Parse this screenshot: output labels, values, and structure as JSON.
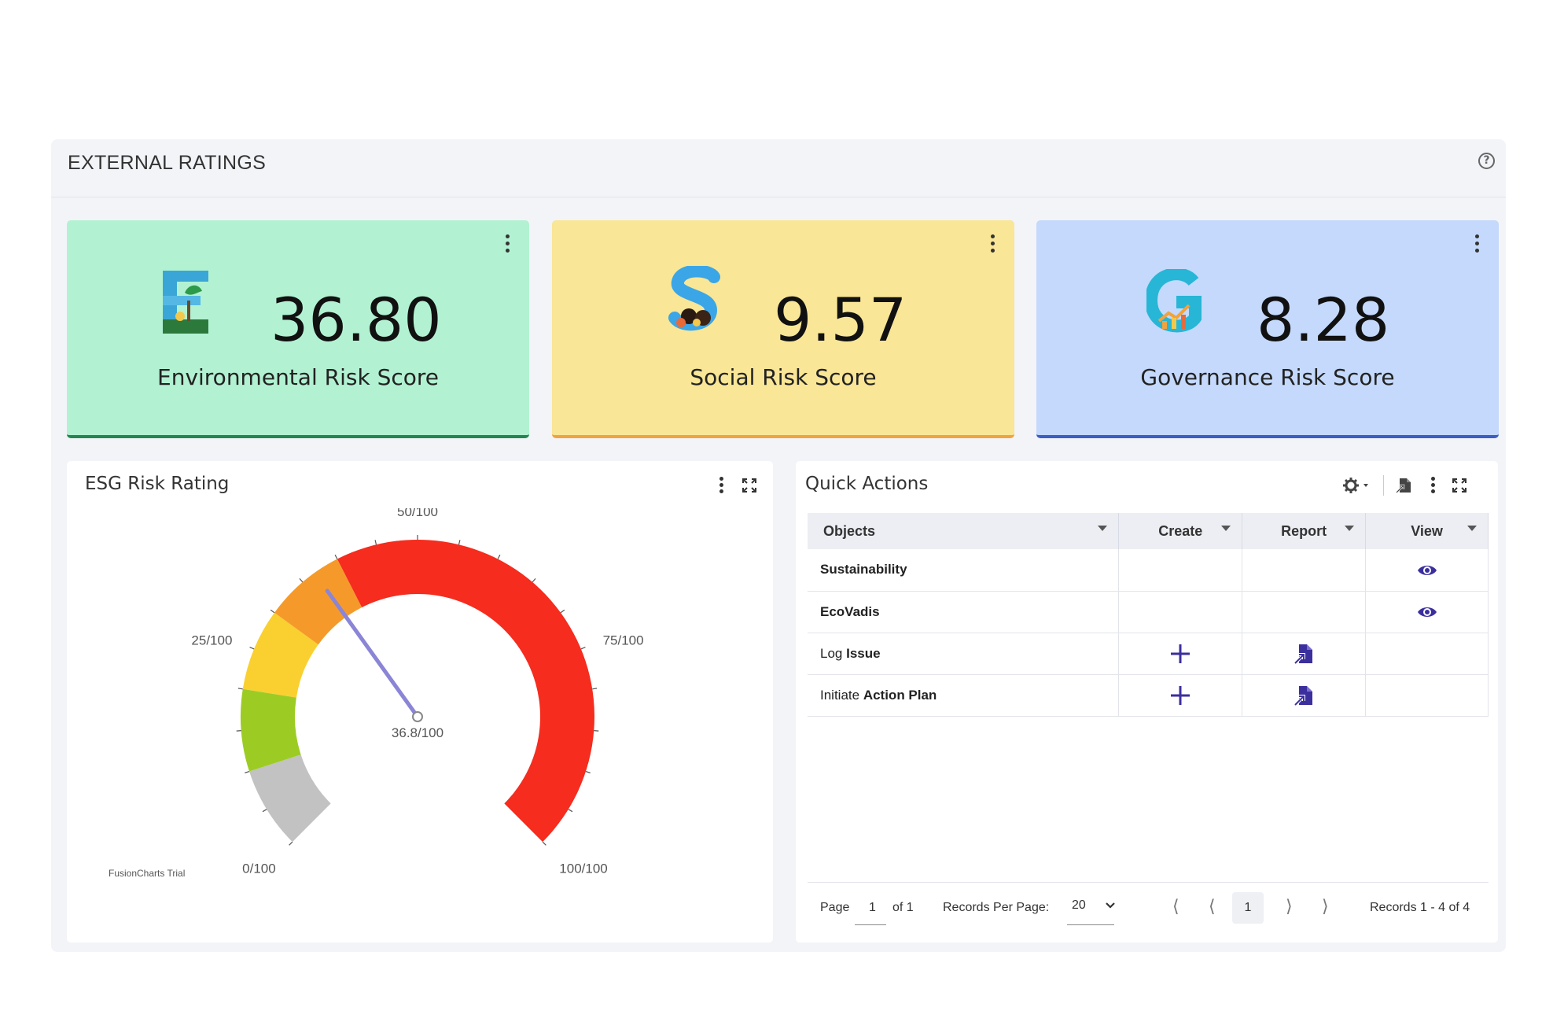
{
  "panel": {
    "title": "EXTERNAL RATINGS",
    "help_icon": "help-circle-icon"
  },
  "cards": [
    {
      "letter": "E",
      "value": "36.80",
      "label": "Environmental Risk Score",
      "bg": "#b2f2d2",
      "accent": "#238651"
    },
    {
      "letter": "S",
      "value": "9.57",
      "label": "Social Risk Score",
      "bg": "#f9e696",
      "accent": "#f0a33e"
    },
    {
      "letter": "G",
      "value": "8.28",
      "label": "Governance Risk Score",
      "bg": "#c4d9fb",
      "accent": "#3a5ec4"
    }
  ],
  "gauge_widget": {
    "title": "ESG Risk Rating",
    "credit": "FusionCharts Trial"
  },
  "chart_data": {
    "type": "gauge",
    "min": 0,
    "max": 100,
    "value": 36.8,
    "value_label": "36.8/100",
    "tick_labels": [
      {
        "value": 0,
        "text": "0/100"
      },
      {
        "value": 25,
        "text": "25/100"
      },
      {
        "value": 50,
        "text": "50/100"
      },
      {
        "value": 75,
        "text": "75/100"
      },
      {
        "value": 100,
        "text": "100/100"
      }
    ],
    "bands": [
      {
        "from": 0,
        "to": 10,
        "color": "#c2c2c2"
      },
      {
        "from": 10,
        "to": 20,
        "color": "#9ccc24"
      },
      {
        "from": 20,
        "to": 30,
        "color": "#f9d030"
      },
      {
        "from": 30,
        "to": 40,
        "color": "#f59a2a"
      },
      {
        "from": 40,
        "to": 100,
        "color": "#f52c1e"
      }
    ]
  },
  "quick_actions": {
    "title": "Quick Actions",
    "columns": [
      "Objects",
      "Create",
      "Report",
      "View"
    ],
    "rows": [
      {
        "prefix": "",
        "bold": "Sustainability",
        "create": false,
        "report": false,
        "view": true
      },
      {
        "prefix": "",
        "bold": "EcoVadis",
        "create": false,
        "report": false,
        "view": true
      },
      {
        "prefix": "Log ",
        "bold": "Issue",
        "create": true,
        "report": true,
        "view": false
      },
      {
        "prefix": "Initiate ",
        "bold": "Action Plan",
        "create": true,
        "report": true,
        "view": false
      }
    ],
    "pager": {
      "page_label": "Page",
      "page_value": "1",
      "of_label": "of 1",
      "records_per_page_label": "Records Per Page:",
      "records_per_page_value": "20",
      "current_page": "1",
      "records_summary": "Records 1 - 4 of 4"
    }
  }
}
